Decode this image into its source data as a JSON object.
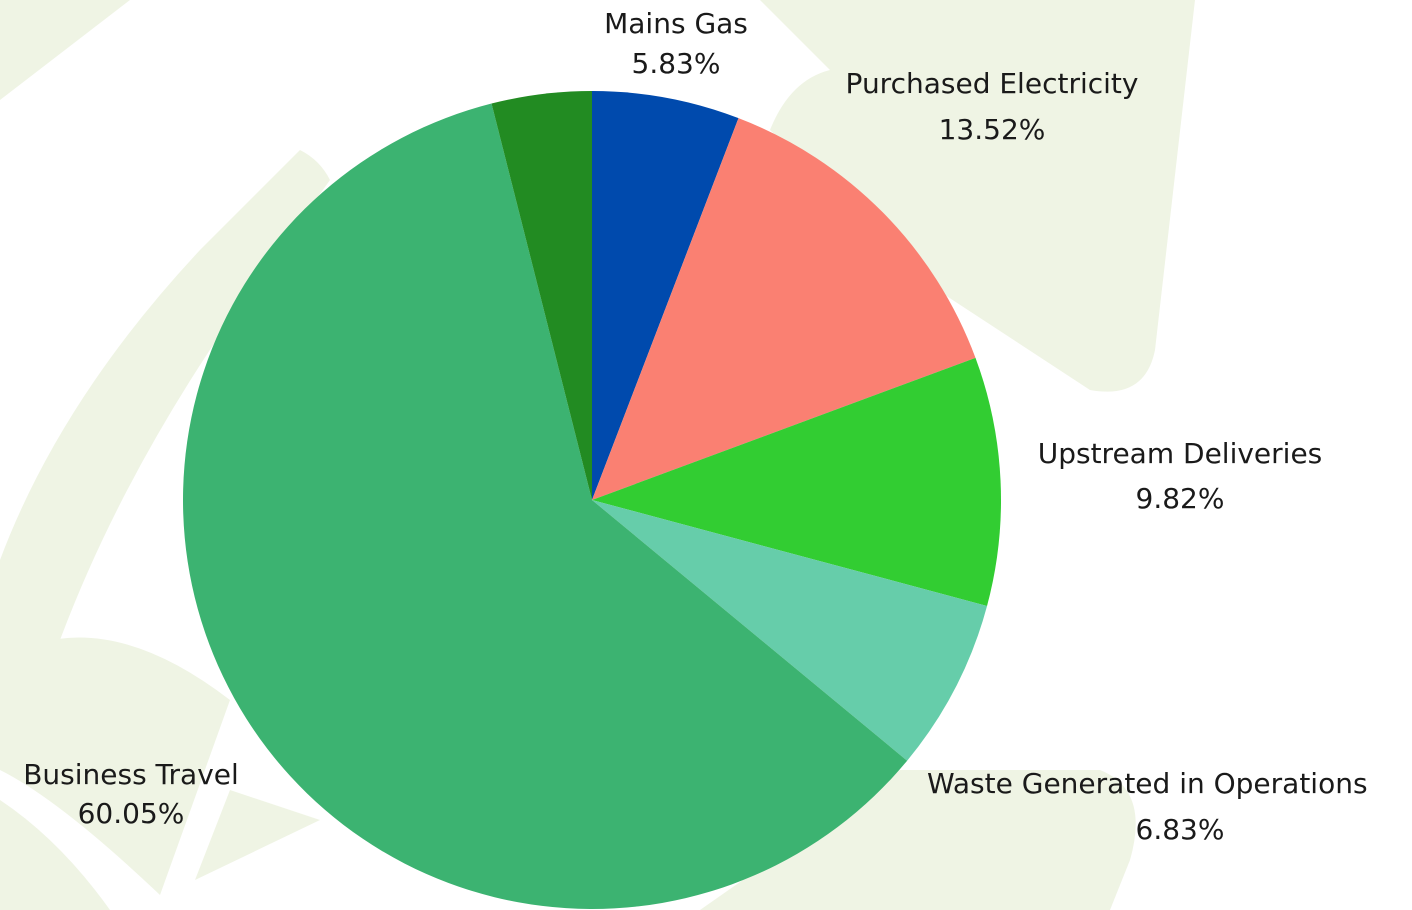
{
  "chart_data": {
    "type": "pie",
    "categories": [
      "Mains Gas",
      "Purchased Electricity",
      "Upstream Deliveries",
      "Waste Generated in Operations",
      "Business Travel",
      null
    ],
    "values": [
      5.83,
      13.52,
      9.82,
      6.83,
      60.05,
      3.95
    ],
    "value_labels": [
      "5.83%",
      "13.52%",
      "9.82%",
      "6.83%",
      "60.05%",
      null
    ],
    "colors": [
      "#004aad",
      "#fa8072",
      "#32cd32",
      "#66cdaa",
      "#3cb371",
      "#228b22"
    ]
  }
}
